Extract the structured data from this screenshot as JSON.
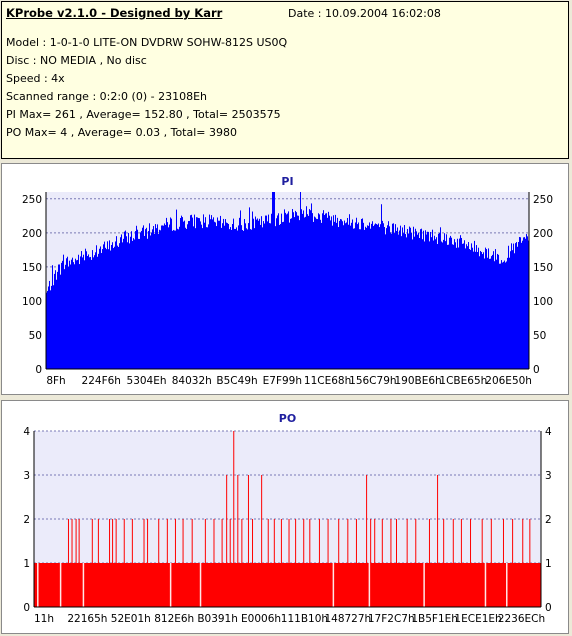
{
  "header": {
    "title": "KProbe v2.1.0 - Designed by Karr",
    "date": "Date : 10.09.2004 16:02:08",
    "lines": [
      "Model : 1-0-1-0 LITE-ON DVDRW SOHW-812S  US0Q",
      "Disc : NO MEDIA , No disc",
      "Speed : 4x",
      "Scanned range : 0:2:0 (0) - 23108Eh",
      "PI Max= 261 , Average= 152.80 , Total= 2503575",
      "PO Max= 4 , Average= 0.03 , Total= 3980"
    ]
  },
  "colors": {
    "pi": "#0000ff",
    "po": "#ff0000",
    "plot_bg": "#ebebfa",
    "grid": "#7a7ab5"
  },
  "chart_data": [
    {
      "type": "bar",
      "title": "PI",
      "ylim": [
        0,
        260
      ],
      "yticks": [
        0,
        50,
        100,
        150,
        200,
        250
      ],
      "xtick_labels": [
        "8Fh",
        "224F6h",
        "5304Eh",
        "84032h",
        "B5C49h",
        "E7F99h",
        "11CE68h",
        "156C79h",
        "190BE6h",
        "1CBE65h",
        "206E50h"
      ],
      "profile": [
        [
          0,
          110
        ],
        [
          1,
          128
        ],
        [
          2,
          140
        ],
        [
          3,
          150
        ],
        [
          4,
          156
        ],
        [
          6,
          160
        ],
        [
          8,
          166
        ],
        [
          10,
          172
        ],
        [
          13,
          180
        ],
        [
          16,
          192
        ],
        [
          20,
          200
        ],
        [
          24,
          210
        ],
        [
          28,
          216
        ],
        [
          32,
          218
        ],
        [
          36,
          214
        ],
        [
          40,
          212
        ],
        [
          44,
          214
        ],
        [
          48,
          222
        ],
        [
          52,
          228
        ],
        [
          54,
          232
        ],
        [
          56,
          224
        ],
        [
          60,
          220
        ],
        [
          64,
          216
        ],
        [
          68,
          212
        ],
        [
          72,
          206
        ],
        [
          76,
          200
        ],
        [
          80,
          196
        ],
        [
          84,
          190
        ],
        [
          88,
          180
        ],
        [
          90,
          174
        ],
        [
          92,
          170
        ],
        [
          94,
          162
        ],
        [
          96,
          172
        ],
        [
          98,
          185
        ],
        [
          100,
          195
        ]
      ],
      "max": 261
    },
    {
      "type": "bar",
      "title": "PO",
      "ylim": [
        0,
        4
      ],
      "yticks": [
        0,
        1,
        2,
        3,
        4
      ],
      "xtick_labels": [
        "11h",
        "22165h",
        "52E01h",
        "812E6h",
        "B0391h",
        "E0006h",
        "111B10h",
        "148727h",
        "17F2C7h",
        "1B5F1Eh",
        "1ECE1Eh",
        "2236ECh"
      ],
      "baseline": 1,
      "spikes": [
        [
          6.8,
          2
        ],
        [
          7.5,
          2
        ],
        [
          8.3,
          2
        ],
        [
          8.9,
          2
        ],
        [
          11.5,
          2
        ],
        [
          12.7,
          2
        ],
        [
          14.9,
          2
        ],
        [
          15.5,
          2
        ],
        [
          16.2,
          2
        ],
        [
          17.8,
          2
        ],
        [
          19.4,
          2
        ],
        [
          21.7,
          2
        ],
        [
          22.4,
          2
        ],
        [
          24.6,
          2
        ],
        [
          26.3,
          2
        ],
        [
          27.9,
          2
        ],
        [
          29.4,
          2
        ],
        [
          31.2,
          2
        ],
        [
          33.8,
          2
        ],
        [
          35.5,
          2
        ],
        [
          37.1,
          2
        ],
        [
          38.0,
          3
        ],
        [
          38.7,
          2
        ],
        [
          39.4,
          4
        ],
        [
          40.2,
          3
        ],
        [
          41.0,
          2
        ],
        [
          42.3,
          3
        ],
        [
          43.1,
          2
        ],
        [
          44.9,
          3
        ],
        [
          46.2,
          2
        ],
        [
          47.4,
          2
        ],
        [
          48.8,
          2
        ],
        [
          50.3,
          2
        ],
        [
          51.6,
          2
        ],
        [
          53.2,
          2
        ],
        [
          54.4,
          2
        ],
        [
          56.3,
          2
        ],
        [
          58.0,
          2
        ],
        [
          60.1,
          2
        ],
        [
          61.9,
          2
        ],
        [
          63.6,
          2
        ],
        [
          65.6,
          3
        ],
        [
          66.4,
          2
        ],
        [
          67.2,
          2
        ],
        [
          68.7,
          2
        ],
        [
          70.4,
          2
        ],
        [
          71.5,
          2
        ],
        [
          73.6,
          2
        ],
        [
          75.3,
          2
        ],
        [
          78.0,
          2
        ],
        [
          79.6,
          3
        ],
        [
          80.8,
          2
        ],
        [
          82.7,
          2
        ],
        [
          84.3,
          2
        ],
        [
          86.1,
          2
        ],
        [
          88.4,
          2
        ],
        [
          90.2,
          2
        ],
        [
          92.6,
          2
        ],
        [
          94.4,
          2
        ],
        [
          96.4,
          2
        ],
        [
          97.8,
          2
        ]
      ],
      "gaps": [
        0.6,
        5.1,
        9.6,
        26.8,
        32.7,
        58.9,
        66.0,
        76.8,
        88.9,
        93.1
      ]
    }
  ]
}
